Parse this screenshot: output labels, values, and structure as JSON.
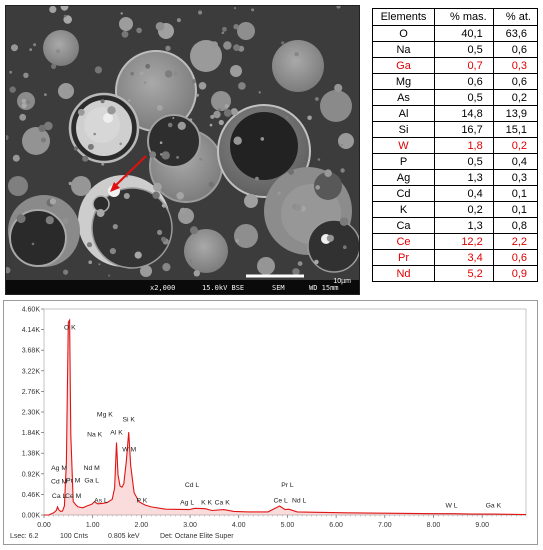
{
  "sem": {
    "scale_label": "10µm",
    "magnification": "x2,000",
    "voltage_mode": "15.0kV BSE",
    "detector": "SEM",
    "working_distance": "WD 15mm",
    "background_color": "#3e3e3e",
    "arrow_color": "#e01010"
  },
  "table": {
    "headers": [
      "Elements",
      "% mas.",
      "% at."
    ],
    "highlight_color": "#e00000",
    "rows": [
      {
        "el": "O",
        "mas": "40,1",
        "at": "63,6",
        "highlight": false
      },
      {
        "el": "Na",
        "mas": "0,5",
        "at": "0,6",
        "highlight": false
      },
      {
        "el": "Ga",
        "mas": "0,7",
        "at": "0,3",
        "highlight": true
      },
      {
        "el": "Mg",
        "mas": "0,6",
        "at": "0,6",
        "highlight": false
      },
      {
        "el": "As",
        "mas": "0,5",
        "at": "0,2",
        "highlight": false
      },
      {
        "el": "Al",
        "mas": "14,8",
        "at": "13,9",
        "highlight": false
      },
      {
        "el": "Si",
        "mas": "16,7",
        "at": "15,1",
        "highlight": false
      },
      {
        "el": "W",
        "mas": "1,8",
        "at": "0,2",
        "highlight": true
      },
      {
        "el": "P",
        "mas": "0,5",
        "at": "0,4",
        "highlight": false
      },
      {
        "el": "Ag",
        "mas": "1,3",
        "at": "0,3",
        "highlight": false
      },
      {
        "el": "Cd",
        "mas": "0,4",
        "at": "0,1",
        "highlight": false
      },
      {
        "el": "K",
        "mas": "0,2",
        "at": "0,1",
        "highlight": false
      },
      {
        "el": "Ca",
        "mas": "1,3",
        "at": "0,8",
        "highlight": false
      },
      {
        "el": "Ce",
        "mas": "12,2",
        "at": "2,2",
        "highlight": true
      },
      {
        "el": "Pr",
        "mas": "3,4",
        "at": "0,6",
        "highlight": true
      },
      {
        "el": "Nd",
        "mas": "5,2",
        "at": "0,9",
        "highlight": true
      }
    ]
  },
  "chart_data": {
    "type": "line",
    "title": "",
    "xlabel": "",
    "ylabel": "",
    "xlim": [
      0,
      9.9
    ],
    "ylim": [
      0,
      4.6
    ],
    "x_ticks": [
      "0.00",
      "1.00",
      "2.00",
      "3.00",
      "4.00",
      "5.00",
      "6.00",
      "7.00",
      "8.00",
      "9.00"
    ],
    "y_ticks": [
      "0.00K",
      "0.46K",
      "0.92K",
      "1.38K",
      "1.84K",
      "2.30K",
      "2.76K",
      "3.22K",
      "3.68K",
      "4.14K",
      "4.60K"
    ],
    "series": [
      {
        "color": "#e01515",
        "x": [
          0.0,
          0.1,
          0.15,
          0.2,
          0.25,
          0.28,
          0.3,
          0.34,
          0.38,
          0.42,
          0.46,
          0.5,
          0.525,
          0.55,
          0.6,
          0.66,
          0.7,
          0.8,
          0.88,
          0.93,
          0.98,
          1.04,
          1.1,
          1.2,
          1.3,
          1.4,
          1.45,
          1.49,
          1.52,
          1.56,
          1.6,
          1.64,
          1.69,
          1.74,
          1.78,
          1.85,
          1.95,
          2.01,
          2.08,
          2.2,
          2.5,
          2.98,
          3.1,
          3.31,
          3.45,
          3.69,
          3.9,
          4.2,
          4.6,
          4.84,
          4.95,
          5.03,
          5.2,
          5.6,
          6.2,
          7.0,
          8.0,
          8.4,
          8.8,
          9.2,
          9.9
        ],
        "y": [
          0.0,
          0.0,
          0.03,
          0.05,
          0.1,
          0.18,
          0.12,
          0.08,
          0.09,
          0.2,
          1.2,
          4.3,
          4.35,
          1.8,
          0.3,
          0.22,
          0.18,
          0.16,
          0.2,
          0.22,
          0.24,
          0.3,
          0.25,
          0.26,
          0.28,
          0.35,
          0.6,
          1.62,
          0.9,
          0.65,
          0.62,
          0.7,
          1.2,
          1.85,
          1.1,
          0.5,
          0.3,
          0.26,
          0.22,
          0.18,
          0.13,
          0.12,
          0.15,
          0.14,
          0.1,
          0.12,
          0.08,
          0.07,
          0.07,
          0.2,
          0.12,
          0.13,
          0.07,
          0.06,
          0.05,
          0.04,
          0.03,
          0.03,
          0.02,
          0.02,
          0.01
        ]
      }
    ],
    "peak_labels": [
      {
        "text": "O K",
        "x": 0.53,
        "y": 4.14
      },
      {
        "text": "Mg K",
        "x": 1.25,
        "y": 2.2
      },
      {
        "text": "Si K",
        "x": 1.74,
        "y": 2.09
      },
      {
        "text": "Al K",
        "x": 1.49,
        "y": 1.8
      },
      {
        "text": "W  M",
        "x": 1.75,
        "y": 1.42
      },
      {
        "text": "Na K",
        "x": 1.04,
        "y": 1.75
      },
      {
        "text": "Nd M",
        "x": 0.98,
        "y": 1.0
      },
      {
        "text": "Ag M",
        "x": 0.31,
        "y": 1.0
      },
      {
        "text": "Cd M",
        "x": 0.31,
        "y": 0.7
      },
      {
        "text": "Pr M",
        "x": 0.6,
        "y": 0.73
      },
      {
        "text": "Ga L",
        "x": 0.98,
        "y": 0.73
      },
      {
        "text": "Ca L",
        "x": 0.31,
        "y": 0.38
      },
      {
        "text": "Ce M",
        "x": 0.6,
        "y": 0.38
      },
      {
        "text": "As L",
        "x": 1.17,
        "y": 0.28
      },
      {
        "text": "P  K",
        "x": 2.01,
        "y": 0.28
      },
      {
        "text": "Cd L",
        "x": 3.04,
        "y": 0.62
      },
      {
        "text": "Ag L",
        "x": 2.94,
        "y": 0.24
      },
      {
        "text": "K  K",
        "x": 3.34,
        "y": 0.24
      },
      {
        "text": "Ca K",
        "x": 3.66,
        "y": 0.24
      },
      {
        "text": "Pr L",
        "x": 5.0,
        "y": 0.62
      },
      {
        "text": "Ce L",
        "x": 4.86,
        "y": 0.28
      },
      {
        "text": "Nd L",
        "x": 5.24,
        "y": 0.28
      },
      {
        "text": "W  L",
        "x": 8.37,
        "y": 0.17
      },
      {
        "text": "Ga K",
        "x": 9.23,
        "y": 0.17
      }
    ]
  },
  "spectrum_footer": {
    "lsec": "Lsec: 6.2",
    "counts": "100 Cnts",
    "energy": "0.805 keV",
    "detector": "Det: Octane Elite Super"
  }
}
